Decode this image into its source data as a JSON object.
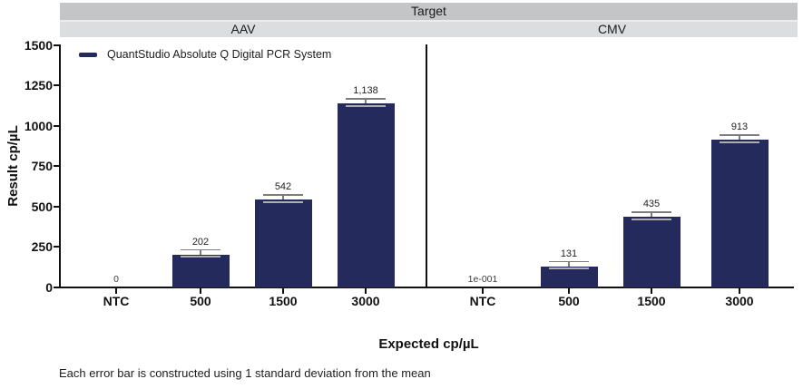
{
  "header": {
    "target_label": "Target"
  },
  "legend": {
    "label": "QuantStudio Absolute Q Digital PCR System"
  },
  "footnote": "Each error bar is constructed using 1 standard deviation from the mean",
  "colors": {
    "bar": "#242a5c",
    "band_dark": "#c4c5c7",
    "band_light": "#dcddde",
    "error_bar": "#7d7d7d",
    "axis": "#111111"
  },
  "chart_data": {
    "type": "bar",
    "title": "Target",
    "xlabel": "Expected cp/µL",
    "ylabel": "Result cp/µL",
    "ylim": [
      0,
      1500
    ],
    "y_ticks": [
      0,
      250,
      500,
      750,
      1000,
      1250,
      1500
    ],
    "grid": false,
    "legend_entries": [
      "QuantStudio Absolute Q Digital PCR System"
    ],
    "legend_position": "top-left inside plot",
    "error_bars": "1 standard deviation from the mean",
    "panels": [
      {
        "name": "AAV",
        "categories": [
          "NTC",
          "500",
          "1500",
          "3000"
        ],
        "values": [
          0,
          202,
          542,
          1138
        ],
        "labels": [
          "0",
          "202",
          "542",
          "1,138"
        ]
      },
      {
        "name": "CMV",
        "categories": [
          "NTC",
          "500",
          "1500",
          "3000"
        ],
        "values": [
          0.1,
          131,
          435,
          913
        ],
        "labels": [
          "1e-001",
          "131",
          "435",
          "913"
        ]
      }
    ]
  }
}
